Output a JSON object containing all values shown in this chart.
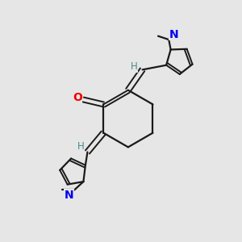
{
  "bg_color": "#e6e6e6",
  "bond_color": "#1a1a1a",
  "N_color": "#0000ee",
  "O_color": "#ee0000",
  "H_color": "#4a8a8a",
  "figsize": [
    3.0,
    3.0
  ],
  "dpi": 100,
  "xlim": [
    0,
    10
  ],
  "ylim": [
    0,
    10
  ]
}
